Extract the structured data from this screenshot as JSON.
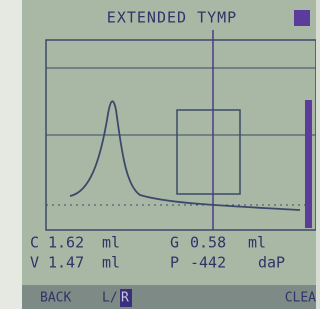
{
  "header": {
    "title": "EXTENDED TYMP"
  },
  "readings": [
    {
      "label": "C",
      "value": "1.62",
      "unit": "ml"
    },
    {
      "label": "G",
      "value": "0.58",
      "unit": "ml"
    },
    {
      "label": "V",
      "value": "1.47",
      "unit": "ml"
    },
    {
      "label": "P",
      "value": "-442",
      "unit": "daP"
    }
  ],
  "footer": {
    "back": "BACK",
    "side": "L/",
    "side_active": "R",
    "clear": "CLEA"
  }
}
